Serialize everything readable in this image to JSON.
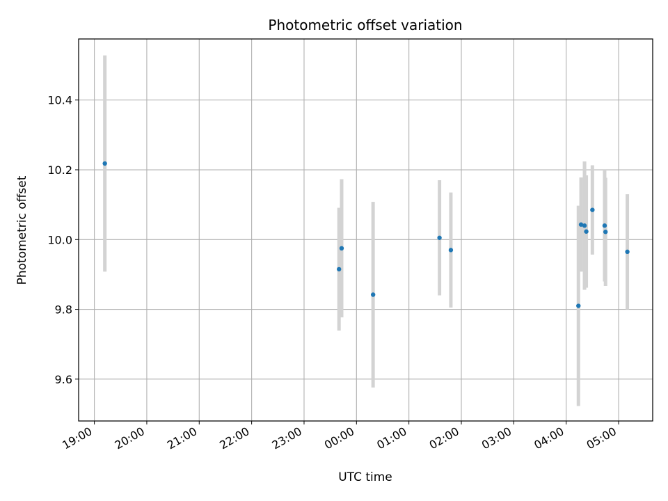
{
  "chart_data": {
    "type": "scatter",
    "title": "Photometric offset variation",
    "xlabel": "UTC time",
    "ylabel": "Photometric offset",
    "x_tick_labels": [
      "19:00",
      "20:00",
      "21:00",
      "22:00",
      "23:00",
      "00:00",
      "01:00",
      "02:00",
      "03:00",
      "04:00",
      "05:00"
    ],
    "x_ticks_hours": [
      19,
      20,
      21,
      22,
      23,
      24,
      25,
      26,
      27,
      28,
      29
    ],
    "xlim_hours": [
      18.7,
      29.65
    ],
    "y_ticks": [
      9.6,
      9.8,
      10.0,
      10.2,
      10.4
    ],
    "y_tick_labels": [
      "9.6",
      "9.8",
      "10.0",
      "10.2",
      "10.4"
    ],
    "ylim": [
      9.48,
      10.575
    ],
    "grid": true,
    "marker_color": "#1f77b4",
    "errorbar_color": "#d3d3d3",
    "points": [
      {
        "time": "19:12",
        "y": 10.218,
        "yerr": 0.31
      },
      {
        "time": "23:40",
        "y": 9.915,
        "yerr": 0.176
      },
      {
        "time": "23:43",
        "y": 9.975,
        "yerr": 0.198
      },
      {
        "time": "00:19",
        "y": 9.842,
        "yerr": 0.266
      },
      {
        "time": "01:35",
        "y": 10.005,
        "yerr": 0.165
      },
      {
        "time": "01:48",
        "y": 9.97,
        "yerr": 0.165
      },
      {
        "time": "04:14",
        "y": 9.81,
        "yerr": 0.287
      },
      {
        "time": "04:17",
        "y": 10.043,
        "yerr": 0.135
      },
      {
        "time": "04:21",
        "y": 10.04,
        "yerr": 0.184
      },
      {
        "time": "04:23",
        "y": 10.023,
        "yerr": 0.161
      },
      {
        "time": "04:30",
        "y": 10.085,
        "yerr": 0.128
      },
      {
        "time": "04:44",
        "y": 10.04,
        "yerr": 0.16
      },
      {
        "time": "04:45",
        "y": 10.022,
        "yerr": 0.155
      },
      {
        "time": "05:10",
        "y": 9.965,
        "yerr": 0.165
      }
    ]
  }
}
